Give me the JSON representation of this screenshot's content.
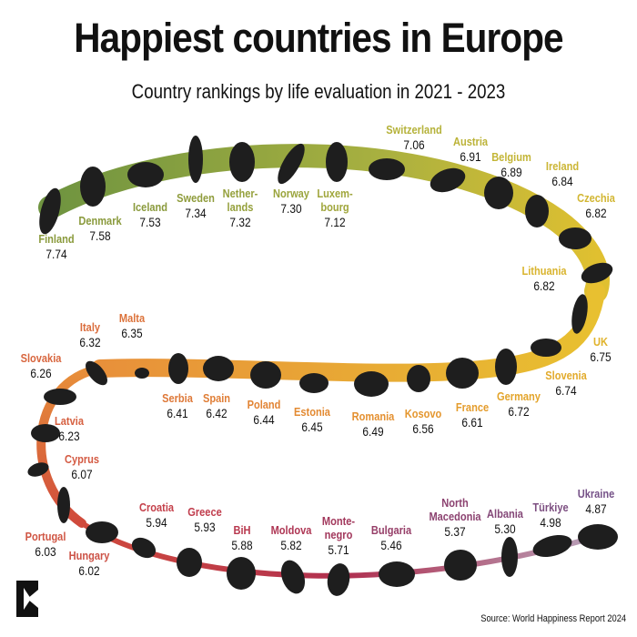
{
  "title": "Happiest countries in Europe",
  "subtitle": "Country rankings by life evaluation in 2021 - 2023",
  "source": "Source: World Happiness Report 2024",
  "chart_data": {
    "type": "ranking",
    "title": "Happiest countries in Europe",
    "subtitle": "Country rankings by life evaluation in 2021 - 2023",
    "items": [
      {
        "name": "Finland",
        "score": 7.74,
        "color": "#8a9a3c"
      },
      {
        "name": "Denmark",
        "score": 7.58,
        "color": "#8a9a3c"
      },
      {
        "name": "Iceland",
        "score": 7.53,
        "color": "#8a9a3c"
      },
      {
        "name": "Sweden",
        "score": 7.34,
        "color": "#8f9c3c"
      },
      {
        "name": "Nether-\nlands",
        "score": 7.32,
        "color": "#95a03c"
      },
      {
        "name": "Norway",
        "score": 7.3,
        "color": "#9aa43c"
      },
      {
        "name": "Luxem-\nbourg",
        "score": 7.12,
        "color": "#a0a63c"
      },
      {
        "name": "Switzerland",
        "score": 7.06,
        "color": "#b5b23a"
      },
      {
        "name": "Austria",
        "score": 6.91,
        "color": "#bcb338"
      },
      {
        "name": "Belgium",
        "score": 6.89,
        "color": "#c3b536"
      },
      {
        "name": "Ireland",
        "score": 6.84,
        "color": "#cbb534"
      },
      {
        "name": "Czechia",
        "score": 6.82,
        "color": "#d2b632"
      },
      {
        "name": "Lithuania",
        "score": 6.82,
        "color": "#d9b42e"
      },
      {
        "name": "UK",
        "score": 6.75,
        "color": "#e0b22a"
      },
      {
        "name": "Slovenia",
        "score": 6.74,
        "color": "#e2aa2a"
      },
      {
        "name": "Germany",
        "score": 6.72,
        "color": "#e3a42a"
      },
      {
        "name": "France",
        "score": 6.61,
        "color": "#e49c2c"
      },
      {
        "name": "Kosovo",
        "score": 6.56,
        "color": "#e4962e"
      },
      {
        "name": "Romania",
        "score": 6.49,
        "color": "#e49030"
      },
      {
        "name": "Estonia",
        "score": 6.45,
        "color": "#e38a32"
      },
      {
        "name": "Poland",
        "score": 6.44,
        "color": "#e28434"
      },
      {
        "name": "Spain",
        "score": 6.42,
        "color": "#e07e36"
      },
      {
        "name": "Serbia",
        "score": 6.41,
        "color": "#de7838"
      },
      {
        "name": "Malta",
        "score": 6.35,
        "color": "#dc723a"
      },
      {
        "name": "Italy",
        "score": 6.32,
        "color": "#da6c3c"
      },
      {
        "name": "Slovakia",
        "score": 6.26,
        "color": "#d8663e"
      },
      {
        "name": "Latvia",
        "score": 6.23,
        "color": "#d66040"
      },
      {
        "name": "Cyprus",
        "score": 6.07,
        "color": "#d45a42"
      },
      {
        "name": "Portugal",
        "score": 6.03,
        "color": "#d05644"
      },
      {
        "name": "Hungary",
        "score": 6.02,
        "color": "#cc5246"
      },
      {
        "name": "Croatia",
        "score": 5.94,
        "color": "#c4404a"
      },
      {
        "name": "Greece",
        "score": 5.93,
        "color": "#c03c4c"
      },
      {
        "name": "BiH",
        "score": 5.88,
        "color": "#b8384e"
      },
      {
        "name": "Moldova",
        "score": 5.82,
        "color": "#ae3654"
      },
      {
        "name": "Monte-\nnegro",
        "score": 5.71,
        "color": "#a2385c"
      },
      {
        "name": "Bulgaria",
        "score": 5.46,
        "color": "#963e68"
      },
      {
        "name": "North\nMacedonia",
        "score": 5.37,
        "color": "#8c4270"
      },
      {
        "name": "Albania",
        "score": 5.3,
        "color": "#844878"
      },
      {
        "name": "Türkiye",
        "score": 4.98,
        "color": "#7c4e80"
      },
      {
        "name": "Ukraine",
        "score": 4.87,
        "color": "#765288"
      }
    ]
  }
}
